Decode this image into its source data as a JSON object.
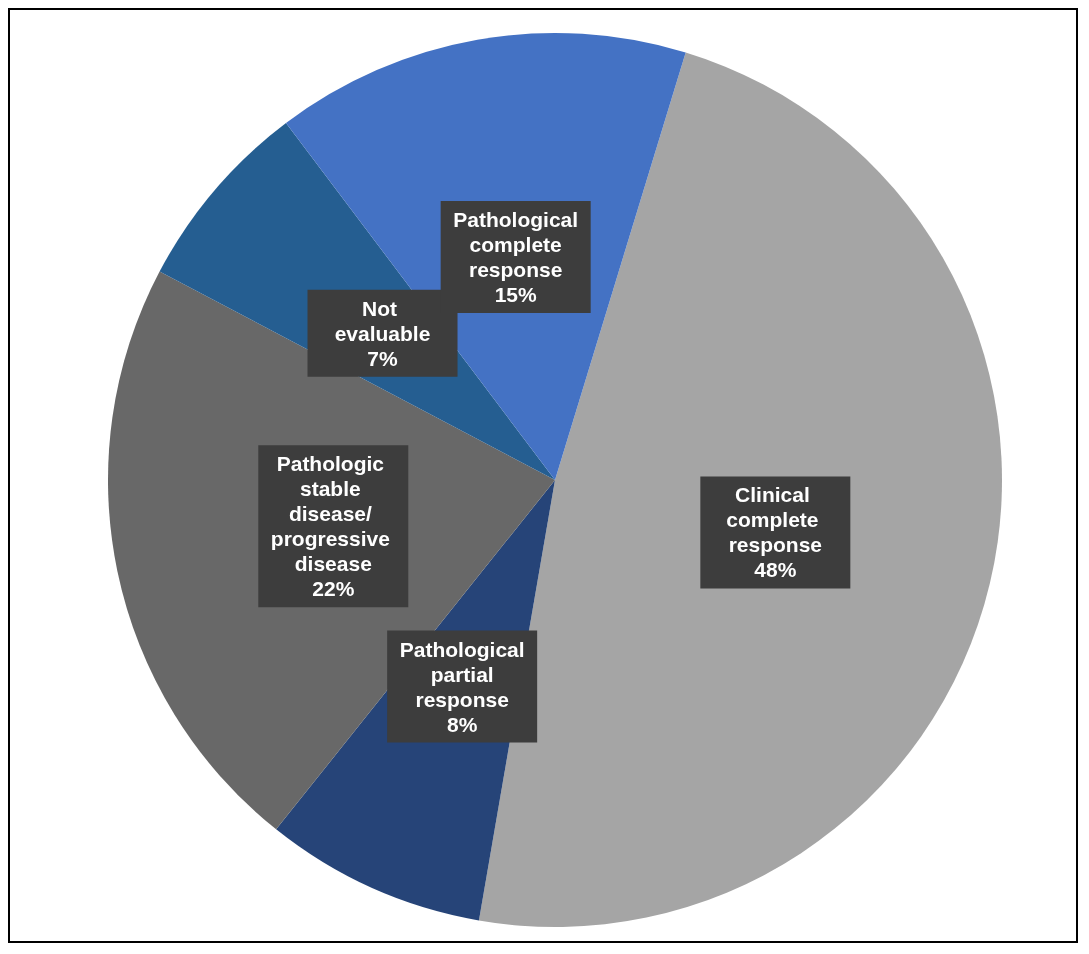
{
  "chart_data": {
    "type": "pie",
    "categories": [
      "Clinical complete response",
      "Pathological partial response",
      "Pathologic stable disease/ progressive disease",
      "Not evaluable",
      "Pathological complete response"
    ],
    "values": [
      48,
      8,
      22,
      7,
      15
    ],
    "colors": [
      "#a5a5a5",
      "#264478",
      "#686868",
      "#255e91",
      "#4472c4"
    ],
    "value_labels": [
      "48%",
      "8%",
      "22%",
      "7%",
      "15%"
    ]
  }
}
